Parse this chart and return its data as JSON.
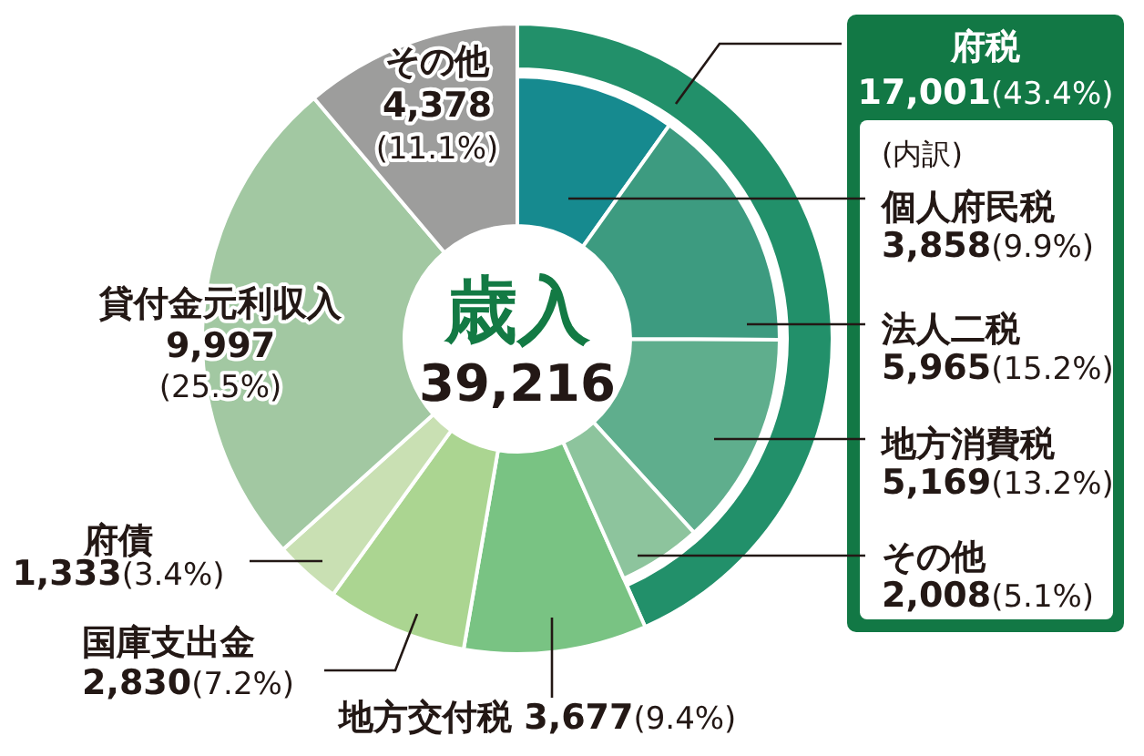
{
  "chart_data": [
    {
      "type": "donut",
      "title": "歳入",
      "subtitle": "39,216",
      "categories": [
        "府税",
        "地方交付税",
        "国庫支出金",
        "府債",
        "貸付金元利収入",
        "その他"
      ],
      "values": [
        17001,
        3677,
        2830,
        1333,
        9997,
        4378
      ],
      "colors": [
        "#22906a",
        "#79c383",
        "#abd591",
        "#c9e0b3",
        "#a2c8a2",
        "#9d9d9c"
      ],
      "value_labels": [
        "17,001(43.4%)",
        "3,677(9.4%)",
        "2,830(7.2%)",
        "1,333(3.4%)",
        "9,997(25.5%)",
        "4,378(11.1%)"
      ]
    },
    {
      "type": "donut",
      "annotations": [
        "(内訳)"
      ],
      "categories": [
        "個人府民税",
        "法人二税",
        "地方消費税",
        "その他"
      ],
      "values": [
        3858,
        5965,
        5169,
        2008
      ],
      "colors": [
        "#168a8f",
        "#3d9b80",
        "#5fae8d",
        "#8dc49d"
      ],
      "value_labels": [
        "3,858(9.9%)",
        "5,965(15.2%)",
        "5,169(13.2%)",
        "2,008(5.1%)"
      ]
    }
  ]
}
